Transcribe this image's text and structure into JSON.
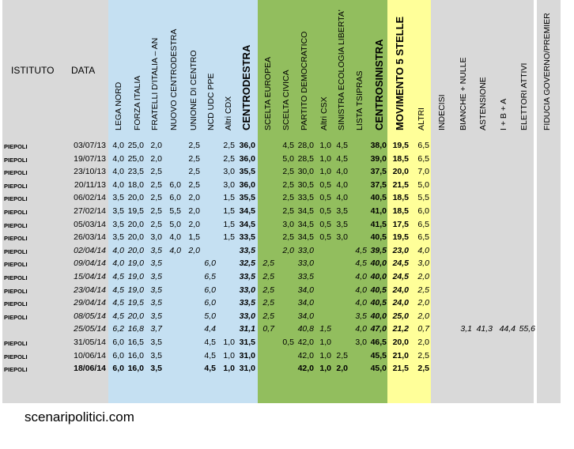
{
  "header": {
    "istituto": "ISTITUTO",
    "data": "DATA",
    "columns": [
      "LEGA NORD",
      "FORZA ITALIA",
      "FRATELLI D'ITALIA – AN",
      "NUOVO CENTRODESTRA",
      "UNIONE DI CENTRO",
      "NCD UDC PPE",
      "Altri CDX",
      "CENTRODESTRA",
      "SCELTA EUROPEA",
      "SCELTA CIVICA",
      "PARTITO DEMOCRATICO",
      "Altri CSX",
      "SINISTRA ECOLOGIA LIBERTA'",
      "LISTA TSIPRAS",
      "CENTROSINISTRA",
      "MOVIMENTO 5 STELLE",
      "ALTRI",
      "INDECISI",
      "BIANCHE + NULLE",
      "ASTENSIONE",
      "I + B + A",
      "ELETTORI ATTIVI",
      "FIDUCIA GOVERNO/PREMIER"
    ]
  },
  "rows": [
    {
      "istituto": "PIEPOLI",
      "data": "03/07/13",
      "style": "",
      "v": [
        "4,0",
        "25,0",
        "2,0",
        "",
        "2,5",
        "",
        "2,5",
        "36,0",
        "",
        "4,5",
        "28,0",
        "1,0",
        "4,5",
        "",
        "38,0",
        "19,5",
        "6,5",
        "",
        "",
        "",
        "",
        "",
        ""
      ]
    },
    {
      "istituto": "PIEPOLI",
      "data": "19/07/13",
      "style": "",
      "v": [
        "4,0",
        "25,0",
        "2,0",
        "",
        "2,5",
        "",
        "2,5",
        "36,0",
        "",
        "5,0",
        "28,5",
        "1,0",
        "4,5",
        "",
        "39,0",
        "18,5",
        "6,5",
        "",
        "",
        "",
        "",
        "",
        ""
      ]
    },
    {
      "istituto": "PIEPOLI",
      "data": "23/10/13",
      "style": "",
      "v": [
        "4,0",
        "23,5",
        "2,5",
        "",
        "2,5",
        "",
        "3,0",
        "35,5",
        "",
        "2,5",
        "30,0",
        "1,0",
        "4,0",
        "",
        "37,5",
        "20,0",
        "7,0",
        "",
        "",
        "",
        "",
        "",
        ""
      ]
    },
    {
      "istituto": "PIEPOLI",
      "data": "20/11/13",
      "style": "",
      "v": [
        "4,0",
        "18,0",
        "2,5",
        "6,0",
        "2,5",
        "",
        "3,0",
        "36,0",
        "",
        "2,5",
        "30,5",
        "0,5",
        "4,0",
        "",
        "37,5",
        "21,5",
        "5,0",
        "",
        "",
        "",
        "",
        "",
        ""
      ]
    },
    {
      "istituto": "PIEPOLI",
      "data": "06/02/14",
      "style": "",
      "v": [
        "3,5",
        "20,0",
        "2,5",
        "6,0",
        "2,0",
        "",
        "1,5",
        "35,5",
        "",
        "2,5",
        "33,5",
        "0,5",
        "4,0",
        "",
        "40,5",
        "18,5",
        "5,5",
        "",
        "",
        "",
        "",
        "",
        ""
      ]
    },
    {
      "istituto": "PIEPOLI",
      "data": "27/02/14",
      "style": "",
      "v": [
        "3,5",
        "19,5",
        "2,5",
        "5,5",
        "2,0",
        "",
        "1,5",
        "34,5",
        "",
        "2,5",
        "34,5",
        "0,5",
        "3,5",
        "",
        "41,0",
        "18,5",
        "6,0",
        "",
        "",
        "",
        "",
        "",
        ""
      ]
    },
    {
      "istituto": "PIEPOLI",
      "data": "05/03/14",
      "style": "",
      "v": [
        "3,5",
        "20,0",
        "2,5",
        "5,0",
        "2,0",
        "",
        "1,5",
        "34,5",
        "",
        "3,0",
        "34,5",
        "0,5",
        "3,5",
        "",
        "41,5",
        "17,5",
        "6,5",
        "",
        "",
        "",
        "",
        "",
        ""
      ]
    },
    {
      "istituto": "PIEPOLI",
      "data": "26/03/14",
      "style": "",
      "v": [
        "3,5",
        "20,0",
        "3,0",
        "4,0",
        "1,5",
        "",
        "1,5",
        "33,5",
        "",
        "2,5",
        "34,5",
        "0,5",
        "3,0",
        "",
        "40,5",
        "19,5",
        "6,5",
        "",
        "",
        "",
        "",
        "",
        ""
      ]
    },
    {
      "istituto": "PIEPOLI",
      "data": "02/04/14",
      "style": "i",
      "v": [
        "4,0",
        "20,0",
        "3,5",
        "4,0",
        "2,0",
        "",
        "",
        "33,5",
        "",
        "2,0",
        "33,0",
        "",
        "",
        "4,5",
        "39,5",
        "23,0",
        "4,0",
        "",
        "",
        "",
        "",
        "",
        ""
      ]
    },
    {
      "istituto": "PIEPOLI",
      "data": "09/04/14",
      "style": "i",
      "v": [
        "4,0",
        "19,0",
        "3,5",
        "",
        "",
        "6,0",
        "",
        "32,5",
        "2,5",
        "",
        "33,0",
        "",
        "",
        "4,5",
        "40,0",
        "24,5",
        "3,0",
        "",
        "",
        "",
        "",
        "",
        ""
      ]
    },
    {
      "istituto": "PIEPOLI",
      "data": "15/04/14",
      "style": "i",
      "v": [
        "4,5",
        "19,0",
        "3,5",
        "",
        "",
        "6,5",
        "",
        "33,5",
        "2,5",
        "",
        "33,5",
        "",
        "",
        "4,0",
        "40,0",
        "24,5",
        "2,0",
        "",
        "",
        "",
        "",
        "",
        ""
      ]
    },
    {
      "istituto": "PIEPOLI",
      "data": "23/04/14",
      "style": "i",
      "v": [
        "4,5",
        "19,0",
        "3,5",
        "",
        "",
        "6,0",
        "",
        "33,0",
        "2,5",
        "",
        "34,0",
        "",
        "",
        "4,0",
        "40,5",
        "24,0",
        "2,5",
        "",
        "",
        "",
        "",
        "",
        ""
      ]
    },
    {
      "istituto": "PIEPOLI",
      "data": "29/04/14",
      "style": "i",
      "v": [
        "4,5",
        "19,5",
        "3,5",
        "",
        "",
        "6,0",
        "",
        "33,5",
        "2,5",
        "",
        "34,0",
        "",
        "",
        "4,0",
        "40,5",
        "24,0",
        "2,0",
        "",
        "",
        "",
        "",
        "",
        ""
      ]
    },
    {
      "istituto": "PIEPOLI",
      "data": "08/05/14",
      "style": "i",
      "v": [
        "4,5",
        "20,0",
        "3,5",
        "",
        "",
        "5,0",
        "",
        "33,0",
        "2,5",
        "",
        "34,0",
        "",
        "",
        "3,5",
        "40,0",
        "25,0",
        "2,0",
        "",
        "",
        "",
        "",
        "",
        ""
      ]
    },
    {
      "istituto": "",
      "data": "25/05/14",
      "style": "i",
      "v": [
        "6,2",
        "16,8",
        "3,7",
        "",
        "",
        "4,4",
        "",
        "31,1",
        "0,7",
        "",
        "40,8",
        "1,5",
        "",
        "4,0",
        "47,0",
        "21,2",
        "0,7",
        "",
        "3,1",
        "41,3",
        "44,4",
        "55,6",
        ""
      ]
    },
    {
      "istituto": "PIEPOLI",
      "data": "31/05/14",
      "style": "",
      "v": [
        "6,0",
        "16,5",
        "3,5",
        "",
        "",
        "4,5",
        "1,0",
        "31,5",
        "",
        "0,5",
        "42,0",
        "1,0",
        "",
        "3,0",
        "46,5",
        "20,0",
        "2,0",
        "",
        "",
        "",
        "",
        "",
        ""
      ]
    },
    {
      "istituto": "PIEPOLI",
      "data": "10/06/14",
      "style": "",
      "v": [
        "6,0",
        "16,0",
        "3,5",
        "",
        "",
        "4,5",
        "1,0",
        "31,0",
        "",
        "",
        "42,0",
        "1,0",
        "2,5",
        "",
        "45,5",
        "21,0",
        "2,5",
        "",
        "",
        "",
        "",
        "",
        ""
      ]
    },
    {
      "istituto": "PIEPOLI",
      "data": "18/06/14",
      "style": "b",
      "v": [
        "6,0",
        "16,0",
        "3,5",
        "",
        "",
        "4,5",
        "1,0",
        "31,0",
        "",
        "",
        "42,0",
        "1,0",
        "2,0",
        "",
        "45,0",
        "21,5",
        "2,5",
        "",
        "",
        "",
        "",
        "",
        ""
      ]
    }
  ],
  "footer": "scenaripolitici.com",
  "colors": {
    "grey": "#d9d9d9",
    "blue": "#c5e0f2",
    "green": "#92be5e",
    "yellow": "#ffff99"
  }
}
